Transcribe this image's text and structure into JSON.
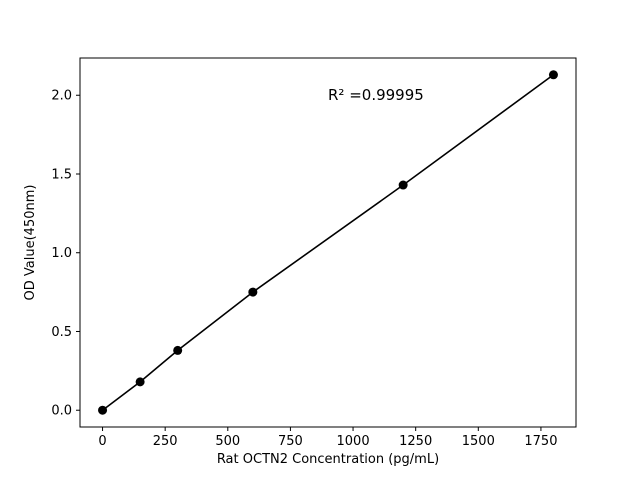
{
  "chart_data": {
    "type": "line",
    "title": "",
    "xlabel": "Rat OCTN2 Concentration (pg/mL)",
    "ylabel": "OD Value(450nm)",
    "x": [
      0,
      150,
      300,
      600,
      1200,
      1800
    ],
    "y": [
      0.0,
      0.18,
      0.38,
      0.75,
      1.43,
      2.13
    ],
    "xlim": [
      -90,
      1890
    ],
    "ylim": [
      -0.1065,
      2.2365
    ],
    "xticks": [
      0,
      250,
      500,
      750,
      1000,
      1250,
      1500,
      1750
    ],
    "yticks": [
      0.0,
      0.5,
      1.0,
      1.5,
      2.0
    ],
    "annotation": {
      "text": "R² =0.99995",
      "x": 900,
      "y": 1.97
    },
    "legend": null,
    "grid": false,
    "line_color": "#000000",
    "marker_color": "#000000",
    "axis_color": "#000000",
    "background_color": "#ffffff"
  }
}
